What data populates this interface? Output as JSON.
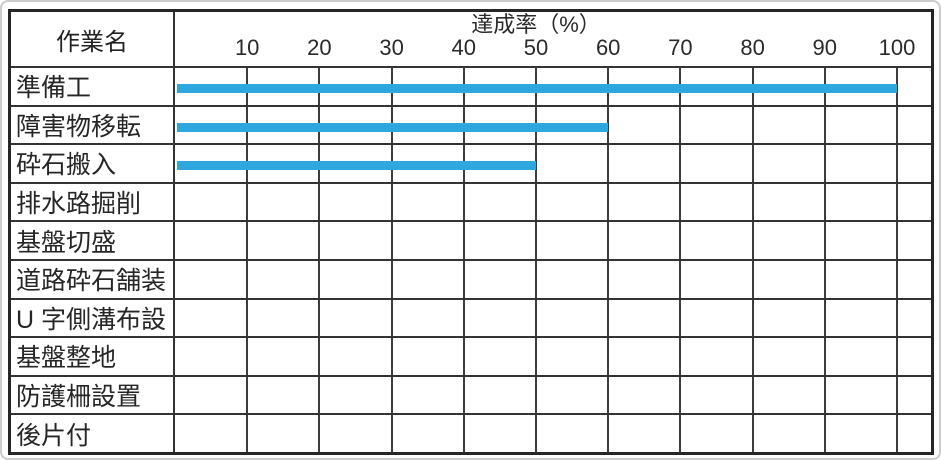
{
  "frame": {
    "background": "#ffffff",
    "border_color": "#cccccc"
  },
  "chart_data": {
    "type": "bar",
    "orientation": "horizontal",
    "title": "達成率（%）",
    "corner_header": "作業名",
    "categories": [
      "準備工",
      "障害物移転",
      "砕石搬入",
      "排水路掘削",
      "基盤切盛",
      "道路砕石舗装",
      "U 字側溝布設",
      "基盤整地",
      "防護柵設置",
      "後片付"
    ],
    "values": [
      100,
      60,
      50,
      0,
      0,
      0,
      0,
      0,
      0,
      0
    ],
    "x_ticks": [
      10,
      20,
      30,
      40,
      50,
      60,
      70,
      80,
      90,
      100
    ],
    "xlim": [
      0,
      100
    ],
    "grid": true,
    "legend_position": "none",
    "bar_color": "#2ea7de",
    "grid_color": "#3c3c3c"
  }
}
